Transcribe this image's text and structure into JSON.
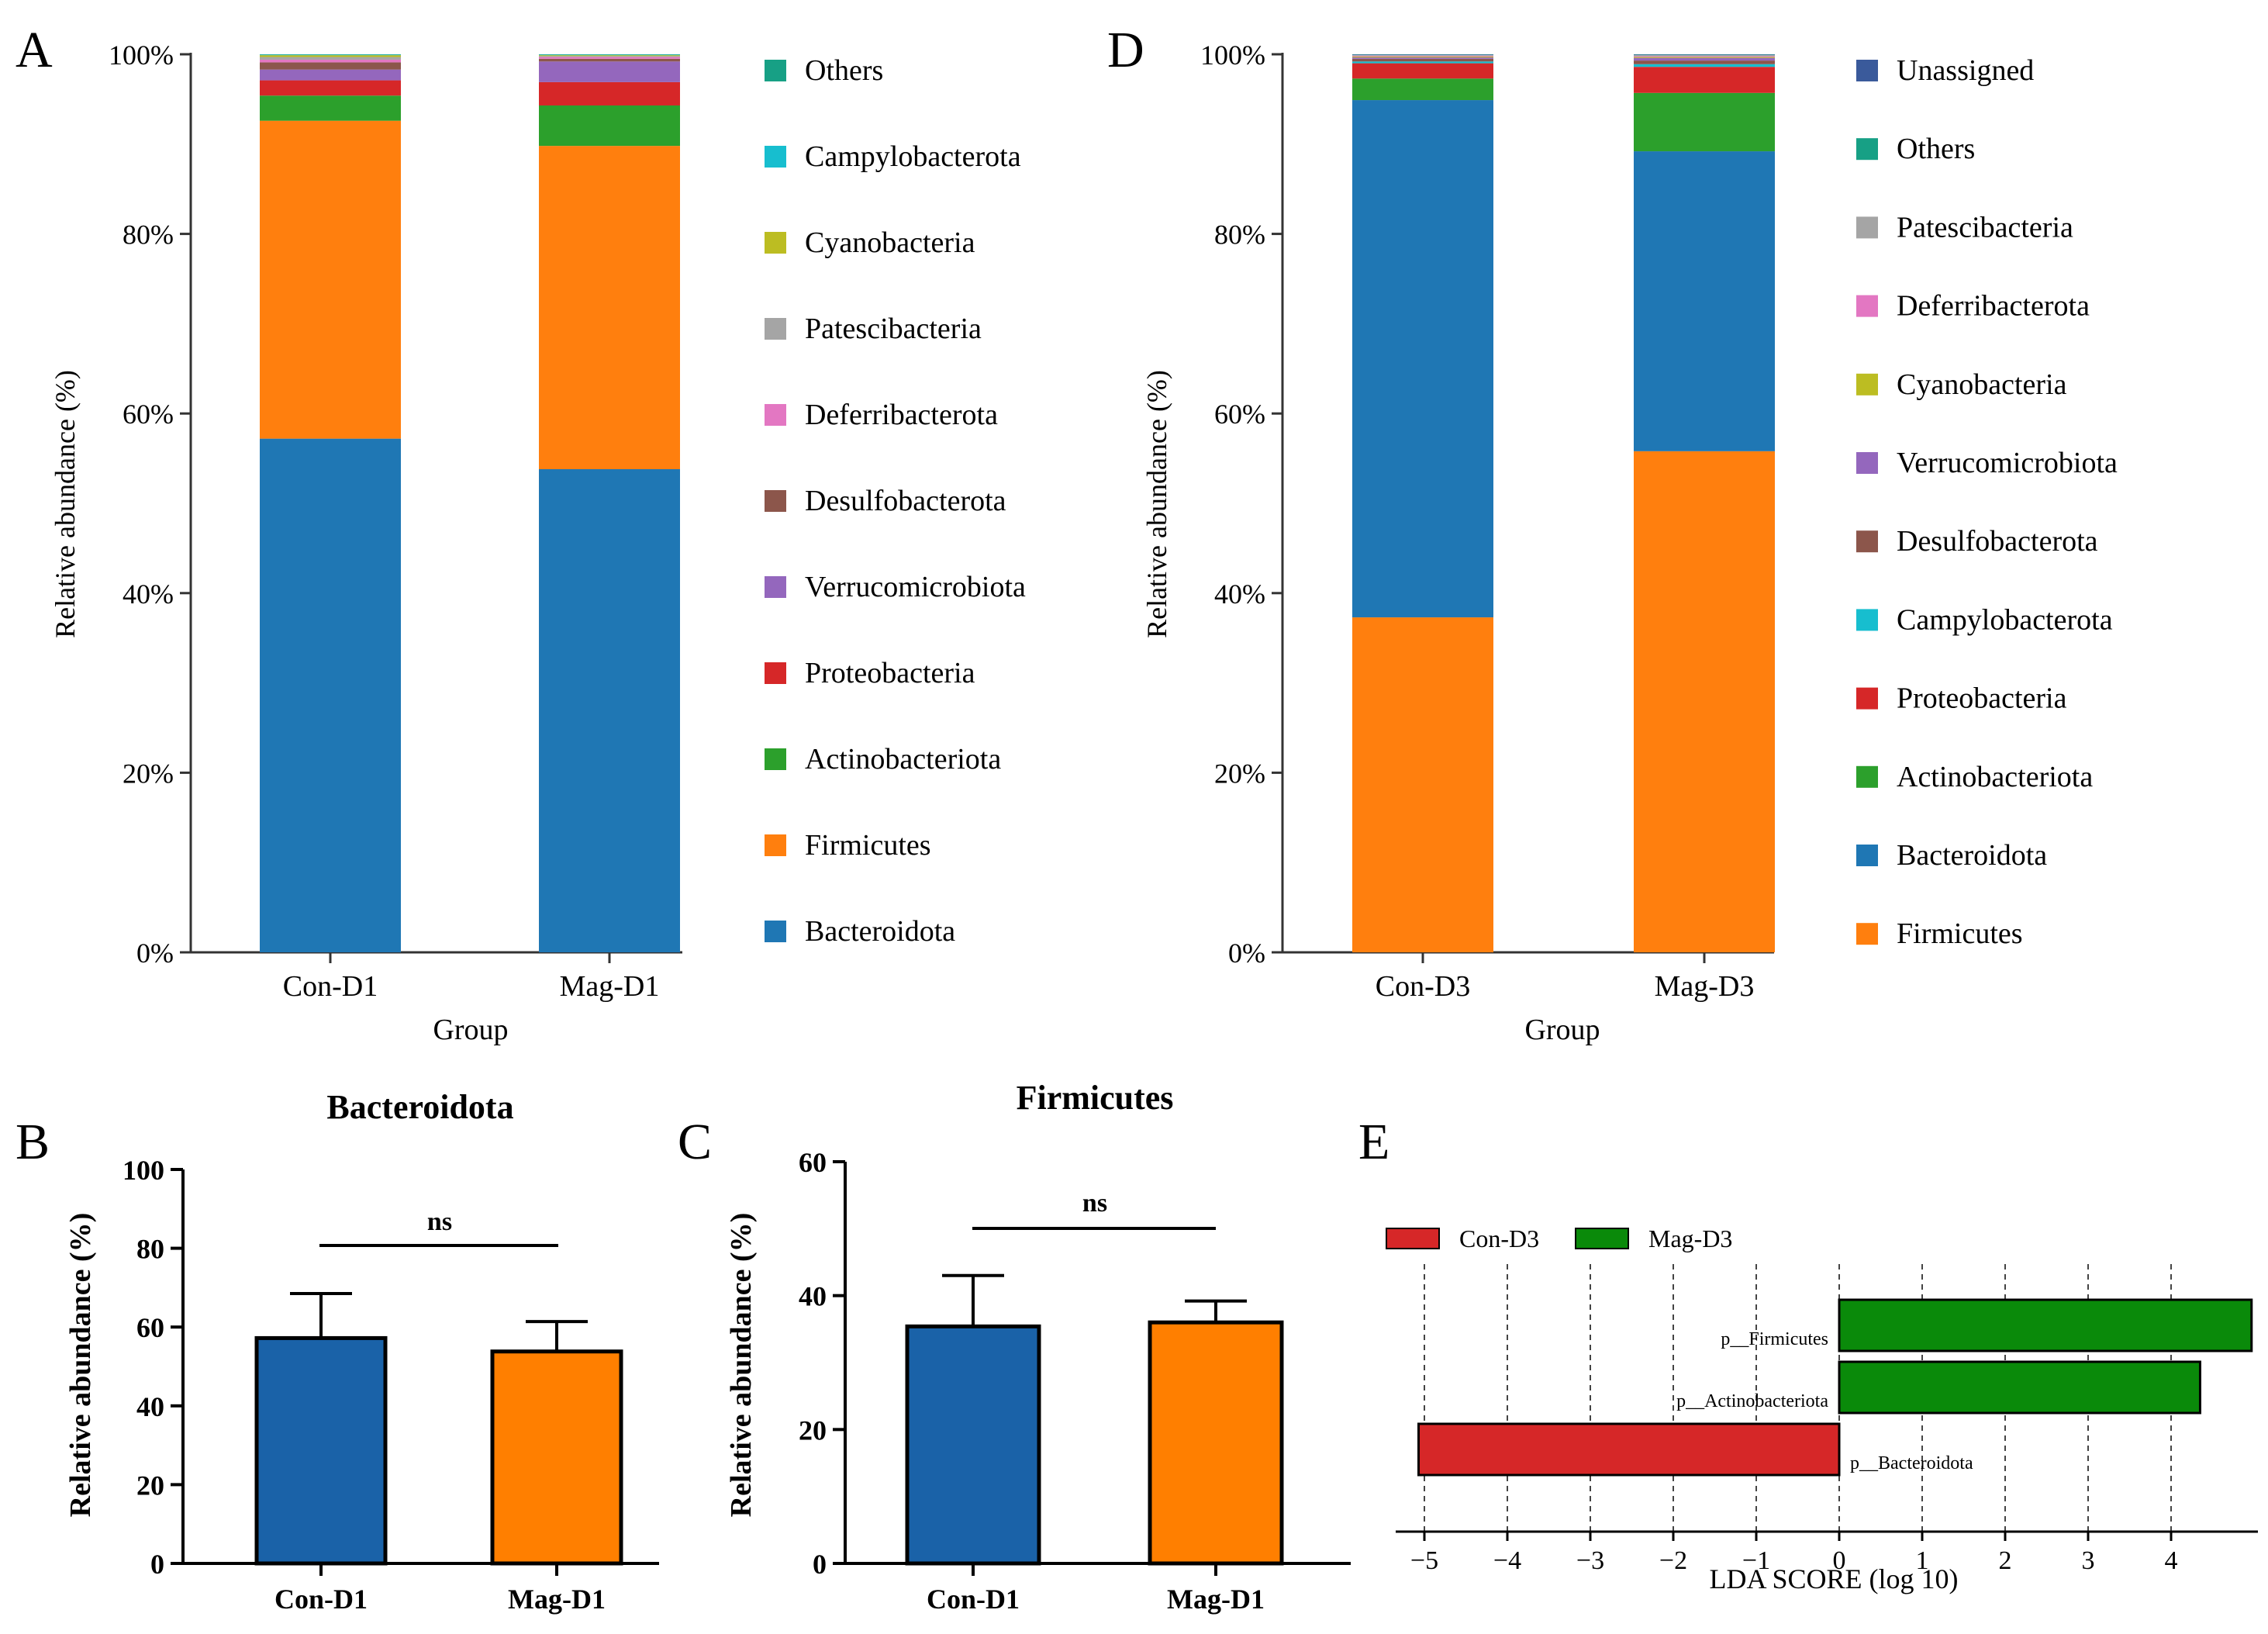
{
  "colors": {
    "Bacteroidota": "#1f77b4",
    "Firmicutes": "#ff7f0e",
    "Actinobacteriota": "#2ca02c",
    "Proteobacteria": "#d62728",
    "Verrucomicrobiota": "#9467bd",
    "Desulfobacterota": "#8c564b",
    "Deferribacterota": "#e377c2",
    "Patescibacteria": "#a5a5a5",
    "Cyanobacteria": "#bcbd22",
    "Campylobacterota": "#17becf",
    "Others": "#17a085",
    "Unassigned": "#3a5a9b",
    "bar_blue": "#1a62a8",
    "bar_orange": "#ff7f00",
    "lda_red": "#d62728",
    "lda_green": "#0a8a0a"
  },
  "chart_data": [
    {
      "panel": "A",
      "type": "bar",
      "stacked": true,
      "xlabel": "Group",
      "ylabel": "Relative abundance (%)",
      "yticks": [
        "0%",
        "20%",
        "40%",
        "60%",
        "80%",
        "100%"
      ],
      "ylim": [
        0,
        100
      ],
      "categories": [
        "Con-D1",
        "Mag-D1"
      ],
      "legend": [
        "Others",
        "Campylobacterota",
        "Cyanobacteria",
        "Patescibacteria",
        "Deferribacterota",
        "Desulfobacterota",
        "Verrucomicrobiota",
        "Proteobacteria",
        "Actinobacteriota",
        "Firmicutes",
        "Bacteroidota"
      ],
      "series": [
        {
          "name": "Bacteroidota",
          "values": [
            57.2,
            53.8
          ]
        },
        {
          "name": "Firmicutes",
          "values": [
            35.4,
            36.0
          ]
        },
        {
          "name": "Actinobacteriota",
          "values": [
            2.8,
            4.5
          ]
        },
        {
          "name": "Proteobacteria",
          "values": [
            1.7,
            2.6
          ]
        },
        {
          "name": "Verrucomicrobiota",
          "values": [
            1.2,
            2.3
          ]
        },
        {
          "name": "Desulfobacterota",
          "values": [
            0.8,
            0.3
          ]
        },
        {
          "name": "Deferribacterota",
          "values": [
            0.3,
            0.2
          ]
        },
        {
          "name": "Patescibacteria",
          "values": [
            0.3,
            0.1
          ]
        },
        {
          "name": "Cyanobacteria",
          "values": [
            0.2,
            0.1
          ]
        },
        {
          "name": "Campylobacterota",
          "values": [
            0.05,
            0.05
          ]
        },
        {
          "name": "Others",
          "values": [
            0.05,
            0.05
          ]
        }
      ]
    },
    {
      "panel": "D",
      "type": "bar",
      "stacked": true,
      "xlabel": "Group",
      "ylabel": "Relative abundance (%)",
      "yticks": [
        "0%",
        "20%",
        "40%",
        "60%",
        "80%",
        "100%"
      ],
      "ylim": [
        0,
        100
      ],
      "categories": [
        "Con-D3",
        "Mag-D3"
      ],
      "legend": [
        "Unassigned",
        "Others",
        "Patescibacteria",
        "Deferribacterota",
        "Cyanobacteria",
        "Verrucomicrobiota",
        "Desulfobacterota",
        "Campylobacterota",
        "Proteobacteria",
        "Actinobacteriota",
        "Bacteroidota",
        "Firmicutes"
      ],
      "series": [
        {
          "name": "Firmicutes",
          "values": [
            37.3,
            55.8
          ]
        },
        {
          "name": "Bacteroidota",
          "values": [
            57.6,
            33.4
          ]
        },
        {
          "name": "Actinobacteriota",
          "values": [
            2.4,
            6.5
          ]
        },
        {
          "name": "Proteobacteria",
          "values": [
            1.7,
            2.9
          ]
        },
        {
          "name": "Campylobacterota",
          "values": [
            0.2,
            0.3
          ]
        },
        {
          "name": "Desulfobacterota",
          "values": [
            0.3,
            0.4
          ]
        },
        {
          "name": "Verrucomicrobiota",
          "values": [
            0.15,
            0.3
          ]
        },
        {
          "name": "Cyanobacteria",
          "values": [
            0.1,
            0.1
          ]
        },
        {
          "name": "Deferribacterota",
          "values": [
            0.1,
            0.1
          ]
        },
        {
          "name": "Patescibacteria",
          "values": [
            0.05,
            0.1
          ]
        },
        {
          "name": "Others",
          "values": [
            0.05,
            0.05
          ]
        },
        {
          "name": "Unassigned",
          "values": [
            0.05,
            0.05
          ]
        }
      ]
    },
    {
      "panel": "B",
      "type": "bar",
      "title": "Bacteroidota",
      "ylabel": "Relative abundance (%)",
      "ylim": [
        0,
        100
      ],
      "yticks": [
        "0",
        "20",
        "40",
        "60",
        "80",
        "100"
      ],
      "categories": [
        "Con-D1",
        "Mag-D1"
      ],
      "values": [
        57.2,
        53.8
      ],
      "errors": [
        11.3,
        7.6
      ],
      "significance": "ns"
    },
    {
      "panel": "C",
      "type": "bar",
      "title": "Firmicutes",
      "ylabel": "Relative abundance (%)",
      "ylim": [
        0,
        60
      ],
      "yticks": [
        "0",
        "20",
        "40",
        "60"
      ],
      "categories": [
        "Con-D1",
        "Mag-D1"
      ],
      "values": [
        35.4,
        36.0
      ],
      "errors": [
        7.6,
        3.2
      ],
      "significance": "ns"
    },
    {
      "panel": "E",
      "type": "bar",
      "orientation": "horizontal",
      "xlabel": "LDA SCORE (log 10)",
      "xlim": [
        -5.3,
        5.0
      ],
      "xticks": [
        "−5",
        "−4",
        "−3",
        "−2",
        "−1",
        "0",
        "1",
        "2",
        "3",
        "4"
      ],
      "legend": [
        "Con-D3",
        "Mag-D3"
      ],
      "categories": [
        "p__Firmicutes",
        "p__Actinobacteriota",
        "p__Bacteroidota"
      ],
      "values": [
        4.97,
        4.35,
        -5.07
      ],
      "groups": [
        "Mag-D3",
        "Mag-D3",
        "Con-D3"
      ]
    }
  ],
  "panel_letters": [
    "A",
    "D",
    "B",
    "C",
    "E"
  ]
}
